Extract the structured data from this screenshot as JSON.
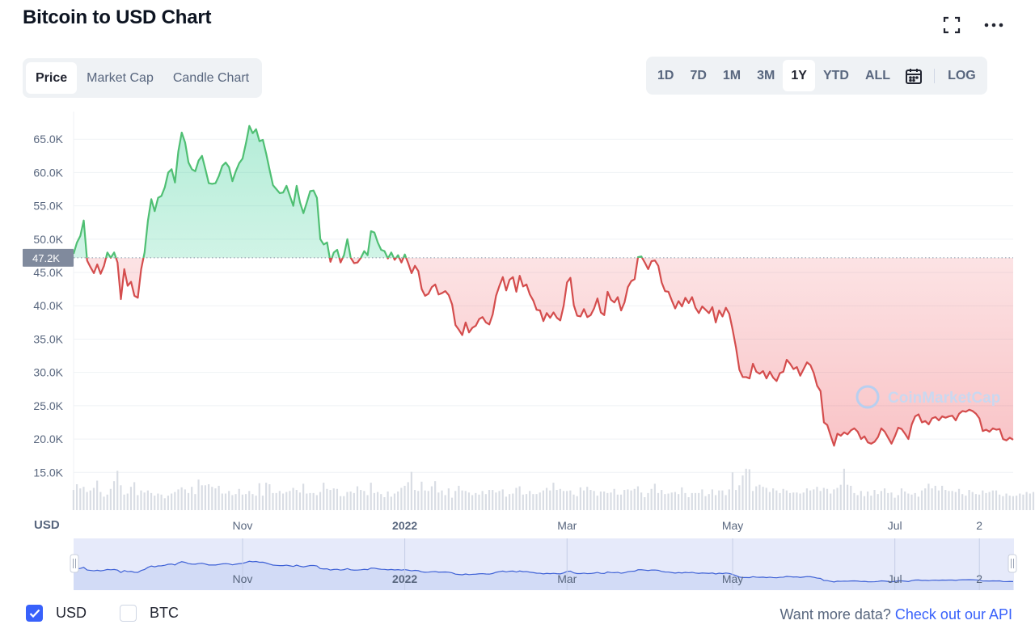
{
  "header": {
    "title": "Bitcoin to USD Chart"
  },
  "tabs": [
    {
      "label": "Price",
      "active": true
    },
    {
      "label": "Market Cap",
      "active": false
    },
    {
      "label": "Candle Chart",
      "active": false
    }
  ],
  "ranges": [
    {
      "label": "1D",
      "active": false
    },
    {
      "label": "7D",
      "active": false
    },
    {
      "label": "1M",
      "active": false
    },
    {
      "label": "3M",
      "active": false
    },
    {
      "label": "1Y",
      "active": true
    },
    {
      "label": "YTD",
      "active": false
    },
    {
      "label": "ALL",
      "active": false
    }
  ],
  "log_label": "LOG",
  "icons": {
    "expand": "expand-icon",
    "more": "more-icon",
    "calendar": "calendar-icon"
  },
  "colors": {
    "up": "#16c784",
    "up_line": "#4fbf73",
    "down": "#d44d4d",
    "accent": "#3861fb",
    "grid": "#eff2f5"
  },
  "chart_data": {
    "type": "area",
    "title": "Bitcoin to USD Chart",
    "ylabel": "USD",
    "ylim": [
      12000,
      70000
    ],
    "y_ticks": [
      15000,
      20000,
      25000,
      30000,
      35000,
      40000,
      45000,
      50000,
      55000,
      60000,
      65000
    ],
    "y_tick_labels": [
      "15.0K",
      "20.0K",
      "25.0K",
      "30.0K",
      "35.0K",
      "40.0K",
      "45.0K",
      "50.0K",
      "55.0K",
      "60.0K",
      "65.0K"
    ],
    "x_tick_labels": [
      "Nov",
      "2022",
      "Mar",
      "May",
      "Jul",
      "2"
    ],
    "x_tick_bold": [
      false,
      true,
      false,
      false,
      false,
      false
    ],
    "x_tick_index": [
      50,
      98,
      146,
      195,
      243,
      268
    ],
    "baseline": 47200,
    "baseline_label": "47.2K",
    "grid": true,
    "series": [
      {
        "values": [
          47800,
          49500,
          50500,
          52800,
          46800,
          45800,
          44900,
          46200,
          44800,
          46000,
          48000,
          47200,
          48000,
          46500,
          41000,
          45500,
          43000,
          43600,
          41500,
          41200,
          45500,
          48000,
          52800,
          56000,
          54200,
          56200,
          56500,
          57800,
          60000,
          60500,
          58500,
          63200,
          66000,
          64500,
          61500,
          60500,
          60200,
          61800,
          62500,
          60500,
          58400,
          58300,
          58400,
          59500,
          61000,
          61500,
          60800,
          58700,
          60200,
          61400,
          62100,
          64400,
          67000,
          65900,
          66500,
          64700,
          64900,
          62800,
          60400,
          58100,
          57500,
          56900,
          57000,
          58000,
          56500,
          55000,
          58000,
          55500,
          53900,
          55500,
          57200,
          57300,
          56200,
          50000,
          49200,
          49500,
          46600,
          48000,
          48400,
          46500,
          47600,
          50000,
          47200,
          46400,
          46500,
          47200,
          48200,
          47600,
          51200,
          51000,
          49500,
          48400,
          48200,
          47100,
          48000,
          46900,
          47600,
          46500,
          47700,
          46400,
          44900,
          46000,
          45200,
          42500,
          41500,
          41800,
          42800,
          43200,
          41700,
          41900,
          42200,
          41600,
          40200,
          37100,
          36400,
          35600,
          37500,
          36000,
          36700,
          37000,
          38000,
          38300,
          37500,
          37200,
          38700,
          41500,
          43000,
          44300,
          42300,
          43900,
          44300,
          42100,
          44500,
          42900,
          43200,
          41700,
          40800,
          39400,
          39300,
          37700,
          38900,
          38200,
          39000,
          38200,
          37800,
          40000,
          43500,
          44200,
          40100,
          38500,
          38400,
          39500,
          38300,
          38600,
          39600,
          41100,
          39000,
          38600,
          42100,
          40900,
          40500,
          41300,
          39300,
          40500,
          42800,
          43700,
          44000,
          47300,
          47400,
          46500,
          45500,
          46700,
          46800,
          46000,
          43500,
          42200,
          42100,
          40800,
          39600,
          40700,
          39900,
          41200,
          40400,
          41300,
          39700,
          38900,
          39900,
          39400,
          38900,
          39800,
          37500,
          39300,
          38400,
          39700,
          38800,
          36400,
          33700,
          30400,
          29300,
          29300,
          29100,
          31300,
          30100,
          29800,
          30200,
          29100,
          30100,
          29200,
          28700,
          29900,
          30100,
          31900,
          31300,
          30500,
          30800,
          29500,
          30500,
          31500,
          31100,
          29900,
          28000,
          27200,
          22500,
          22100,
          20500,
          19000,
          20800,
          20500,
          21000,
          20700,
          21300,
          21600,
          21100,
          20000,
          20400,
          19500,
          19300,
          19600,
          20300,
          21600,
          21100,
          20200,
          19300,
          20400,
          21700,
          21500,
          20800,
          20000,
          22200,
          23400,
          23700,
          22500,
          22700,
          22200,
          23100,
          23300,
          22800,
          23400,
          23200,
          23400,
          23500,
          22800,
          23800,
          24200,
          24100,
          24400,
          24200,
          23800,
          23100,
          21200,
          21400,
          21100,
          21600,
          21400,
          21500,
          20000,
          19800,
          20200,
          19900
        ]
      }
    ],
    "volume": [
      0.39,
      0.5,
      0.42,
      0.45,
      0.35,
      0.38,
      0.43,
      0.57,
      0.35,
      0.26,
      0.3,
      0.41,
      0.56,
      0.76,
      0.48,
      0.3,
      0.32,
      0.45,
      0.54,
      0.29,
      0.38,
      0.34,
      0.38,
      0.33,
      0.28,
      0.32,
      0.3,
      0.23,
      0.28,
      0.32,
      0.35,
      0.4,
      0.44,
      0.4,
      0.33,
      0.45,
      0.31,
      0.59,
      0.48,
      0.48,
      0.5,
      0.45,
      0.42,
      0.47,
      0.32,
      0.32,
      0.37,
      0.29,
      0.31,
      0.41,
      0.3,
      0.31,
      0.37,
      0.31,
      0.28,
      0.52,
      0.28,
      0.53,
      0.5,
      0.33,
      0.33,
      0.37,
      0.32,
      0.35,
      0.37,
      0.43,
      0.39,
      0.34,
      0.51,
      0.32,
      0.33,
      0.33,
      0.29,
      0.35,
      0.53,
      0.41,
      0.39,
      0.42,
      0.41,
      0.27,
      0.27,
      0.35,
      0.36,
      0.33,
      0.46,
      0.39,
      0.37,
      0.29,
      0.53,
      0.33,
      0.35,
      0.31,
      0.25,
      0.36,
      0.26,
      0.32,
      0.36,
      0.43,
      0.47,
      0.54,
      0.74,
      0.39,
      0.37,
      0.55,
      0.38,
      0.37,
      0.46,
      0.56,
      0.34,
      0.38,
      0.29,
      0.42,
      0.24,
      0.37,
      0.47,
      0.38,
      0.37,
      0.34,
      0.29,
      0.33,
      0.3,
      0.37,
      0.31,
      0.39,
      0.39,
      0.34,
      0.37,
      0.4,
      0.26,
      0.31,
      0.32,
      0.43,
      0.46,
      0.3,
      0.31,
      0.37,
      0.31,
      0.31,
      0.34,
      0.38,
      0.43,
      0.38,
      0.53,
      0.39,
      0.41,
      0.37,
      0.37,
      0.38,
      0.3,
      0.27,
      0.44,
      0.38,
      0.45,
      0.39,
      0.37,
      0.28,
      0.36,
      0.36,
      0.33,
      0.34,
      0.41,
      0.3,
      0.3,
      0.39,
      0.4,
      0.38,
      0.41,
      0.46,
      0.34,
      0.25,
      0.33,
      0.41,
      0.51,
      0.33,
      0.39,
      0.31,
      0.32,
      0.34,
      0.35,
      0.31,
      0.44,
      0.33,
      0.25,
      0.33,
      0.33,
      0.33,
      0.4,
      0.27,
      0.31,
      0.4,
      0.29,
      0.38,
      0.38,
      0.29,
      0.4,
      0.73,
      0.39,
      0.48,
      0.67,
      0.8,
      0.79,
      0.37,
      0.46,
      0.49,
      0.45,
      0.43,
      0.35,
      0.42,
      0.38,
      0.33,
      0.41,
      0.38,
      0.33,
      0.34,
      0.34,
      0.32,
      0.34,
      0.42,
      0.38,
      0.4,
      0.45,
      0.37,
      0.43,
      0.41,
      0.32,
      0.4,
      0.43,
      0.49,
      0.8,
      0.49,
      0.47,
      0.33,
      0.29,
      0.37,
      0.27,
      0.36,
      0.28,
      0.39,
      0.31,
      0.37,
      0.42,
      0.33,
      0.34,
      0.24,
      0.29,
      0.42,
      0.36,
      0.32,
      0.3,
      0.33,
      0.26,
      0.38,
      0.42,
      0.51,
      0.42,
      0.47,
      0.38,
      0.47,
      0.39,
      0.37,
      0.37,
      0.35,
      0.41,
      0.31,
      0.28,
      0.39,
      0.35,
      0.31,
      0.3,
      0.38,
      0.33,
      0.35,
      0.38,
      0.38,
      0.3,
      0.27,
      0.32,
      0.28,
      0.27,
      0.28,
      0.32,
      0.3,
      0.35,
      0.32,
      0.35
    ]
  },
  "watermark": "CoinMarketCap",
  "footer": {
    "usd_label": "USD",
    "btc_label": "BTC",
    "api_text": "Want more data?",
    "api_link": "Check out our API"
  }
}
